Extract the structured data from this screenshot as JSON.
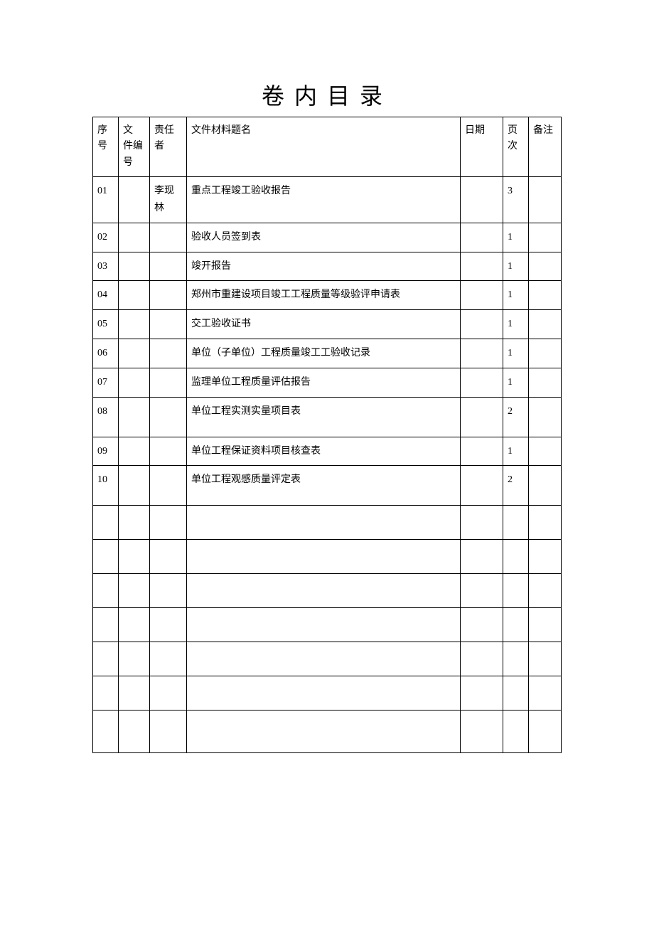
{
  "title": "卷内目录",
  "table": {
    "columns": [
      "序号",
      "文件编号",
      "责任者",
      "文件材料题名",
      "日期",
      "页次",
      "备注"
    ],
    "column_spaced": [
      "序号",
      "文 件编号",
      "责任者",
      "文件材料题名",
      "日期",
      "页次",
      "备注"
    ],
    "rows": [
      {
        "seq": "01",
        "docno": "",
        "responsible": "李现林",
        "title": "重点工程竣工验收报告",
        "date": "",
        "page": "3",
        "remark": ""
      },
      {
        "seq": "02",
        "docno": "",
        "responsible": "",
        "title": "验收人员签到表",
        "date": "",
        "page": "1",
        "remark": ""
      },
      {
        "seq": "03",
        "docno": "",
        "responsible": "",
        "title": "竣开报告",
        "date": "",
        "page": "1",
        "remark": ""
      },
      {
        "seq": "04",
        "docno": "",
        "responsible": "",
        "title": "郑州市重建设项目竣工工程质量等级验评申请表",
        "date": "",
        "page": "1",
        "remark": ""
      },
      {
        "seq": "05",
        "docno": "",
        "responsible": "",
        "title": "交工验收证书",
        "date": "",
        "page": "1",
        "remark": ""
      },
      {
        "seq": "06",
        "docno": "",
        "responsible": "",
        "title": "单位（子单位）工程质量竣工工验收记录",
        "date": "",
        "page": "1",
        "remark": ""
      },
      {
        "seq": "07",
        "docno": "",
        "responsible": "",
        "title": "监理单位工程质量评估报告",
        "date": "",
        "page": "1",
        "remark": ""
      },
      {
        "seq": "08",
        "docno": "",
        "responsible": "",
        "title": "单位工程实测实量项目表",
        "date": "",
        "page": "2",
        "remark": ""
      },
      {
        "seq": "09",
        "docno": "",
        "responsible": "",
        "title": "单位工程保证资料项目核查表",
        "date": "",
        "page": "1",
        "remark": ""
      },
      {
        "seq": "10",
        "docno": "",
        "responsible": "",
        "title": "单位工程观感质量评定表",
        "date": "",
        "page": "2",
        "remark": ""
      }
    ],
    "empty_rows": 7,
    "colors": {
      "border": "#000000",
      "text": "#000000",
      "background": "#ffffff"
    },
    "typography": {
      "title_fontsize": 32,
      "cell_fontsize": 14,
      "font_family": "SimSun"
    },
    "col_widths_pct": [
      5.5,
      6.7,
      7.9,
      45.6,
      9.1,
      5.5,
      7.0
    ]
  }
}
